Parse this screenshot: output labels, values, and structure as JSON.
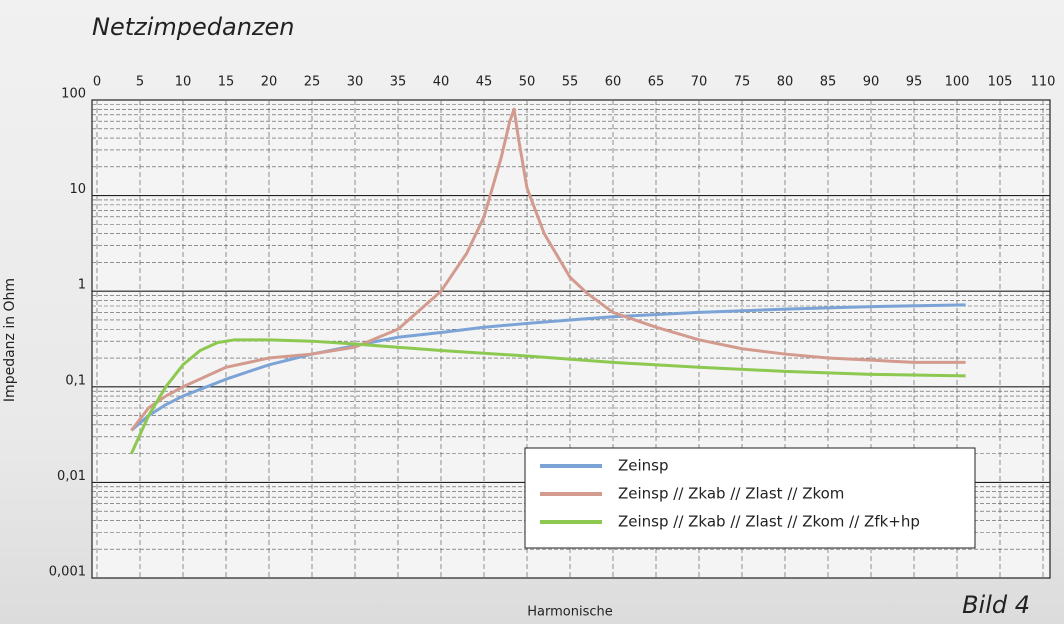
{
  "chart_data": {
    "type": "line",
    "title": "Netzimpedanzen",
    "caption": "Bild 4",
    "x_label": "Harmonische",
    "y_label": "Impedanz in Ohm",
    "log_y": true,
    "grid": true,
    "legend": "lower right",
    "xlim": [
      0,
      110
    ],
    "xticks": [
      0,
      5,
      10,
      15,
      20,
      25,
      30,
      35,
      40,
      45,
      50,
      55,
      60,
      65,
      70,
      75,
      80,
      85,
      90,
      95,
      100,
      105,
      110
    ],
    "ylim": [
      0.001,
      100
    ],
    "yticks": [
      {
        "value": 0.001,
        "label": "0,001"
      },
      {
        "value": 0.01,
        "label": "0,01"
      },
      {
        "value": 0.1,
        "label": "0,1"
      },
      1,
      10,
      100
    ],
    "series": [
      {
        "name": "Zeinsp",
        "color": "#7ba3d6",
        "x": [
          4,
          6,
          8,
          10,
          15,
          20,
          25,
          30,
          35,
          40,
          45,
          50,
          55,
          60,
          70,
          80,
          90,
          101
        ],
        "values": [
          0.035,
          0.05,
          0.065,
          0.08,
          0.12,
          0.17,
          0.22,
          0.27,
          0.33,
          0.37,
          0.42,
          0.46,
          0.5,
          0.54,
          0.6,
          0.65,
          0.69,
          0.72
        ]
      },
      {
        "name": "Zeinsp // Zkab // Zlast // Zkom",
        "color": "#d39a8e",
        "x": [
          4,
          6,
          8,
          10,
          15,
          20,
          25,
          30,
          35,
          40,
          43,
          45,
          47,
          48,
          48.5,
          49,
          50,
          52,
          55,
          57,
          60,
          65,
          70,
          75,
          80,
          85,
          90,
          95,
          101
        ],
        "values": [
          0.035,
          0.06,
          0.08,
          0.1,
          0.16,
          0.2,
          0.22,
          0.26,
          0.4,
          1.0,
          2.5,
          6,
          25,
          60,
          80,
          40,
          12,
          4,
          1.4,
          0.95,
          0.6,
          0.42,
          0.31,
          0.25,
          0.22,
          0.2,
          0.19,
          0.18,
          0.18
        ]
      },
      {
        "name": "Zeinsp // Zkab // Zlast // Zkom // Zfk+hp",
        "color": "#8dc851",
        "x": [
          4,
          6,
          8,
          10,
          12,
          14,
          16,
          20,
          25,
          30,
          40,
          50,
          60,
          70,
          80,
          90,
          101
        ],
        "values": [
          0.02,
          0.05,
          0.1,
          0.17,
          0.24,
          0.29,
          0.31,
          0.31,
          0.3,
          0.28,
          0.24,
          0.21,
          0.18,
          0.16,
          0.145,
          0.135,
          0.13
        ]
      }
    ]
  }
}
